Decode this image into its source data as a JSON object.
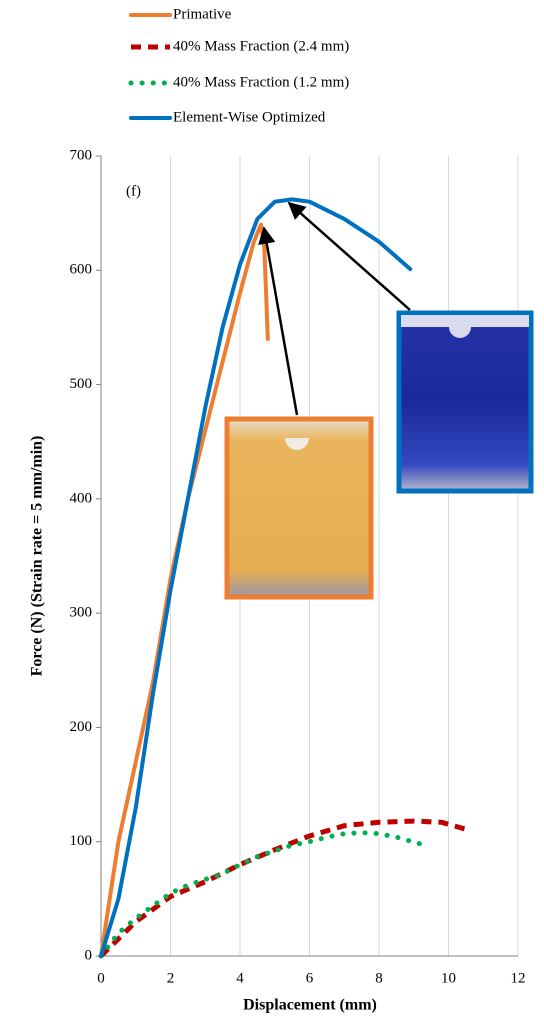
{
  "chart_data": {
    "type": "line",
    "annotation": "(f)",
    "xlabel": "Displacement (mm)",
    "ylabel": "Force (N) (Strain rate = 5 mm/min)",
    "xlim": [
      0,
      12
    ],
    "xticks": [
      0,
      2,
      4,
      6,
      8,
      10,
      12
    ],
    "ylim": [
      0,
      700
    ],
    "yticks": [
      0,
      100,
      200,
      300,
      400,
      500,
      600,
      700
    ],
    "grid": "x",
    "series": [
      {
        "name": "Primative",
        "color": "#ed7d31",
        "style": "solid",
        "x": [
          0,
          0.5,
          1,
          1.5,
          2,
          2.5,
          3,
          3.5,
          4,
          4.4,
          4.6,
          4.7,
          4.75,
          4.8
        ],
        "values": [
          0,
          100,
          170,
          240,
          330,
          400,
          460,
          520,
          580,
          625,
          640,
          620,
          580,
          540
        ]
      },
      {
        "name": "40% Mass Fraction (2.4 mm)",
        "color": "#c00000",
        "style": "dashed",
        "x": [
          0,
          1,
          2,
          3,
          4,
          5,
          6,
          7,
          8,
          9,
          9.8,
          10.6
        ],
        "values": [
          0,
          30,
          52,
          65,
          80,
          93,
          105,
          114,
          117,
          118,
          117,
          110
        ]
      },
      {
        "name": "40% Mass Fraction (1.2 mm)",
        "color": "#00b050",
        "style": "dotted",
        "x": [
          0,
          0.5,
          1,
          1.5,
          2,
          2.5,
          3,
          3.5,
          4,
          4.5,
          5,
          5.5,
          6,
          6.5,
          7,
          7.5,
          8,
          8.5,
          9.2
        ],
        "values": [
          0,
          20,
          33,
          44,
          55,
          62,
          67,
          72,
          80,
          87,
          92,
          97,
          100,
          104,
          107,
          108,
          107,
          104,
          98
        ]
      },
      {
        "name": "Element-Wise Optimized",
        "color": "#0070c0",
        "style": "solid",
        "x": [
          0,
          0.5,
          1,
          1.5,
          2,
          2.5,
          3,
          3.5,
          4,
          4.5,
          5,
          5.5,
          6,
          7,
          8,
          8.9
        ],
        "values": [
          0,
          50,
          130,
          230,
          320,
          400,
          480,
          550,
          605,
          645,
          660,
          662,
          660,
          645,
          625,
          601
        ]
      }
    ]
  }
}
